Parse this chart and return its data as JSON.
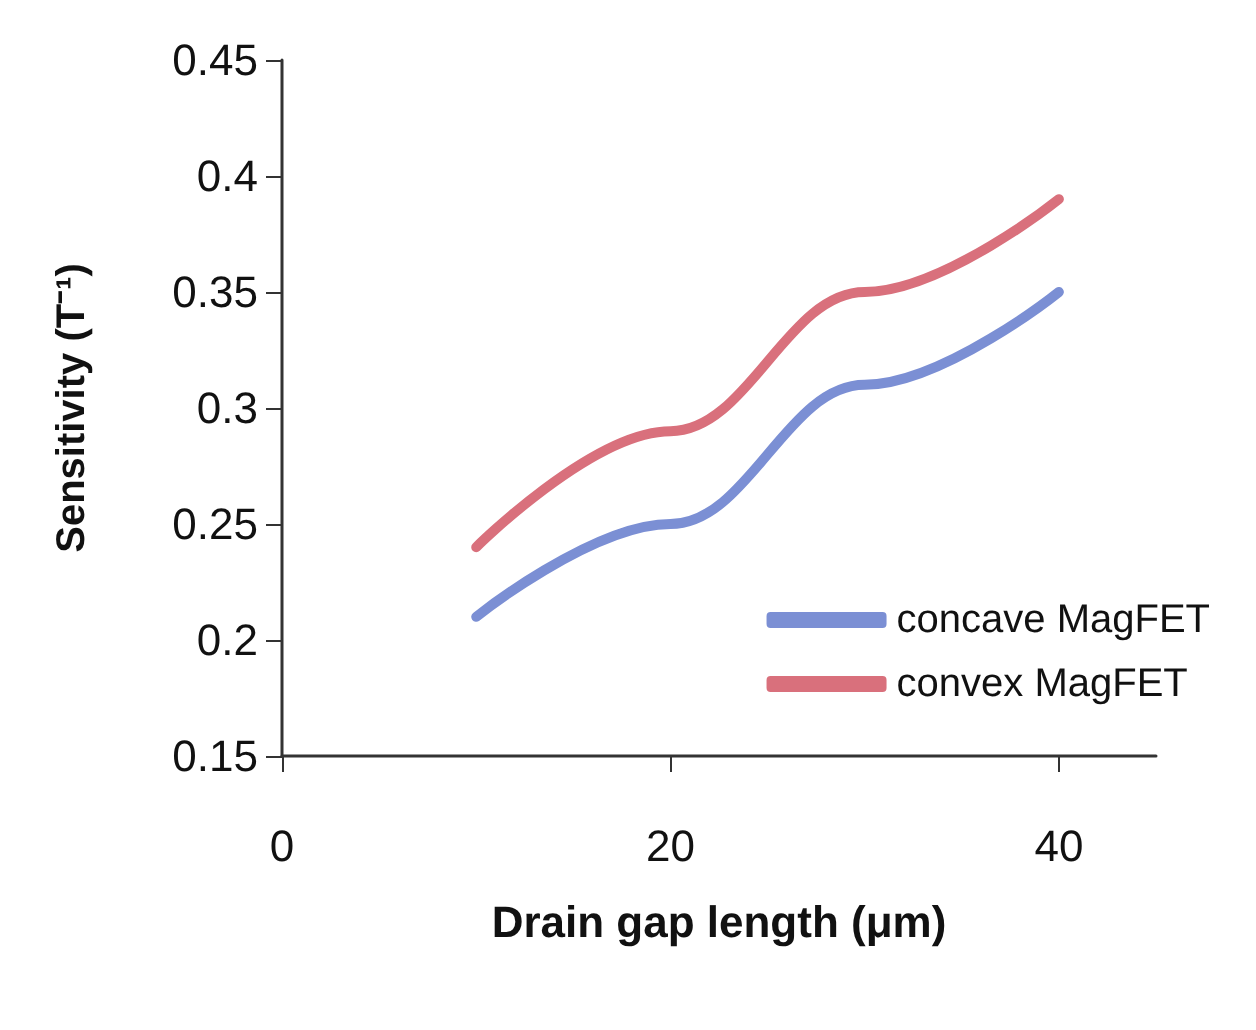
{
  "chart_data": {
    "type": "line",
    "xlabel": "Drain gap length (μm)",
    "ylabel": "Sensitivity (T⁻¹)",
    "x": [
      10,
      20,
      30,
      40
    ],
    "series": [
      {
        "name": "concave MagFET",
        "color": "#7b8fd4",
        "values": [
          0.21,
          0.25,
          0.31,
          0.35
        ]
      },
      {
        "name": "convex MagFET",
        "color": "#d9707c",
        "values": [
          0.24,
          0.29,
          0.35,
          0.39
        ]
      }
    ],
    "xlim": [
      0,
      45
    ],
    "xticks": [
      0,
      20,
      40
    ],
    "ylim": [
      0.15,
      0.45
    ],
    "yticks": [
      0.15,
      0.2,
      0.25,
      0.3,
      0.35,
      0.4,
      0.45
    ],
    "grid": false,
    "legend": "bottom right",
    "marker": "none",
    "line_style": "solid"
  }
}
